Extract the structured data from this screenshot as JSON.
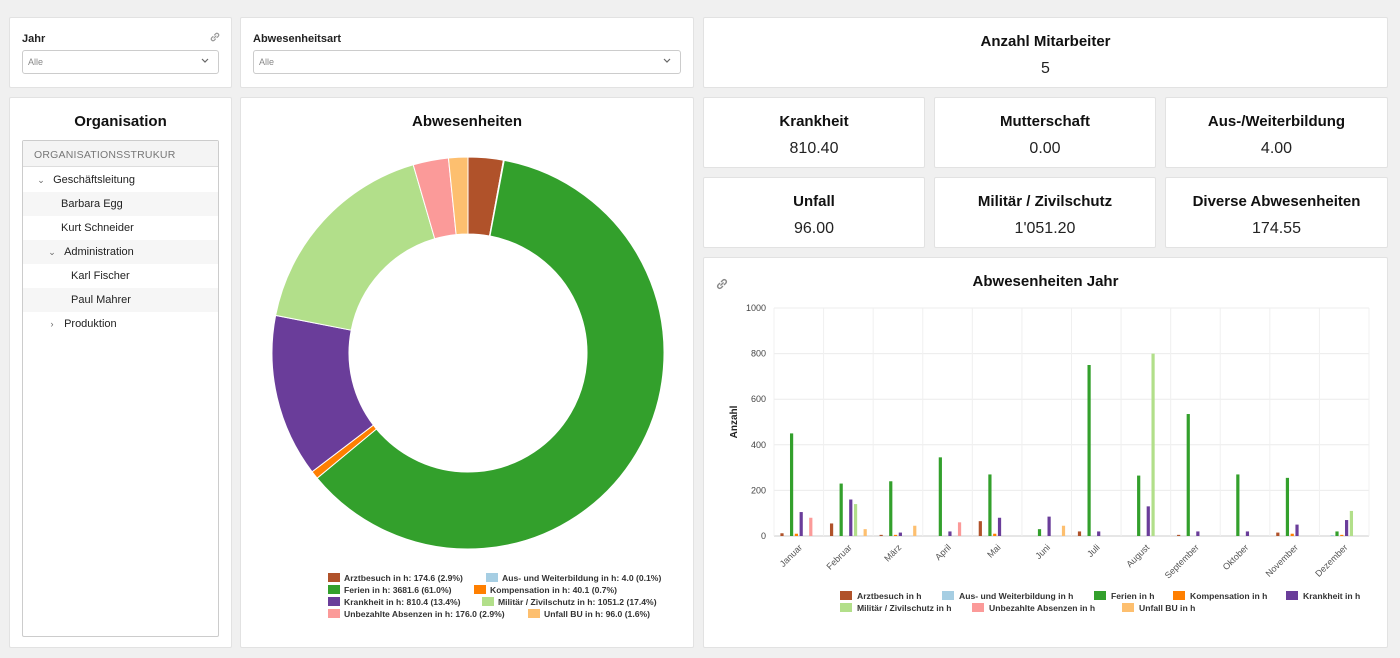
{
  "filters": {
    "year": {
      "label": "Jahr",
      "value": "Alle"
    },
    "absence_type": {
      "label": "Abwesenheitsart",
      "value": "Alle"
    }
  },
  "kpis": {
    "employees": {
      "title": "Anzahl Mitarbeiter",
      "value": "5"
    },
    "sickness": {
      "title": "Krankheit",
      "value": "810.40"
    },
    "maternity": {
      "title": "Mutterschaft",
      "value": "0.00"
    },
    "training": {
      "title": "Aus-/Weiterbildung",
      "value": "4.00"
    },
    "accident": {
      "title": "Unfall",
      "value": "96.00"
    },
    "military": {
      "title": "Militär / Zivilschutz",
      "value": "1'051.20"
    },
    "misc": {
      "title": "Diverse Abwesenheiten",
      "value": "174.55"
    }
  },
  "organisation": {
    "title": "Organisation",
    "header": "ORGANISATIONSSTRUKUR",
    "nodes": [
      "Geschäftsleitung",
      "Barbara Egg",
      "Kurt Schneider",
      "Administration",
      "Karl Fischer",
      "Paul Mahrer",
      "Produktion"
    ]
  },
  "colors": {
    "arztbesuch": "#b0522a",
    "weiterbildung": "#a6cee3",
    "ferien": "#33a02c",
    "kompensation": "#ff7f00",
    "krankheit": "#6a3d9a",
    "militaer": "#b2df8a",
    "unbezahlt": "#fb9a99",
    "unfall": "#fdbf6f"
  },
  "donut": {
    "title": "Abwesenheiten",
    "legend": [
      "Arztbesuch in h: 174.6 (2.9%)",
      "Aus- und Weiterbildung in h: 4.0 (0.1%)",
      "Ferien in h: 3681.6 (61.0%)",
      "Kompensation in h: 40.1 (0.7%)",
      "Krankheit in h: 810.4 (13.4%)",
      "Militär / Zivilschutz in h: 1051.2 (17.4%)",
      "Unbezahlte Absenzen in h: 176.0 (2.9%)",
      "Unfall BU in h: 96.0 (1.6%)"
    ]
  },
  "chart_data": [
    {
      "type": "pie",
      "title": "Abwesenheiten",
      "categories": [
        "Arztbesuch in h",
        "Aus- und Weiterbildung in h",
        "Ferien in h",
        "Kompensation in h",
        "Krankheit in h",
        "Militär / Zivilschutz in h",
        "Unbezahlte Absenzen in h",
        "Unfall BU in h"
      ],
      "values": [
        174.6,
        4.0,
        3681.6,
        40.1,
        810.4,
        1051.2,
        176.0,
        96.0
      ],
      "percent": [
        2.9,
        0.1,
        61.0,
        0.7,
        13.4,
        17.4,
        2.9,
        1.6
      ],
      "legend": "bottom"
    },
    {
      "type": "bar",
      "title": "Abwesenheiten Jahr",
      "ylabel": "Anzahl",
      "ylim": [
        0,
        1000
      ],
      "yticks": [
        "0",
        "200",
        "400",
        "600",
        "800",
        "1000"
      ],
      "categories": [
        "Januar",
        "Februar",
        "März",
        "April",
        "Mai",
        "Juni",
        "Juli",
        "August",
        "September",
        "Oktober",
        "November",
        "Dezember"
      ],
      "legend": "bottom",
      "series": [
        {
          "name": "Arztbesuch in h",
          "values": [
            12,
            55,
            5,
            0,
            65,
            0,
            20,
            0,
            5,
            0,
            15,
            0
          ]
        },
        {
          "name": "Aus- und Weiterbildung in h",
          "values": [
            0,
            0,
            0,
            0,
            0,
            0,
            0,
            0,
            0,
            0,
            0,
            4
          ]
        },
        {
          "name": "Ferien in h",
          "values": [
            450,
            230,
            240,
            345,
            270,
            30,
            750,
            265,
            535,
            270,
            255,
            20
          ]
        },
        {
          "name": "Kompensation in h",
          "values": [
            10,
            0,
            5,
            0,
            10,
            0,
            0,
            0,
            0,
            0,
            10,
            5
          ]
        },
        {
          "name": "Krankheit in h",
          "values": [
            105,
            160,
            15,
            20,
            80,
            85,
            20,
            130,
            20,
            20,
            50,
            70
          ]
        },
        {
          "name": "Militär / Zivilschutz in h",
          "values": [
            0,
            140,
            0,
            0,
            0,
            0,
            0,
            800,
            0,
            0,
            0,
            110
          ]
        },
        {
          "name": "Unbezahlte Absenzen in h",
          "values": [
            80,
            0,
            0,
            60,
            0,
            0,
            0,
            0,
            0,
            0,
            0,
            0
          ]
        },
        {
          "name": "Unfall BU in h",
          "values": [
            0,
            30,
            45,
            0,
            0,
            45,
            0,
            0,
            0,
            0,
            0,
            0
          ]
        }
      ]
    }
  ]
}
